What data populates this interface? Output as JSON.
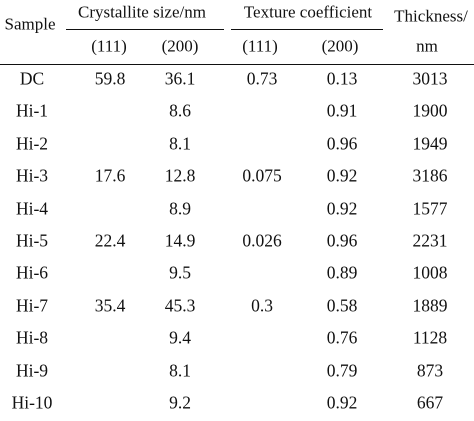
{
  "table": {
    "headers": {
      "sample": "Sample",
      "crystallite": "Crystallite size/nm",
      "texture": "Texture coefficient",
      "thickness_line1": "Thickness/",
      "thickness_line2": "nm",
      "sub_111_a": "(111)",
      "sub_200_a": "(200)",
      "sub_111_b": "(111)",
      "sub_200_b": "(200)"
    },
    "rows": [
      [
        "DC",
        "59.8",
        "36.1",
        "0.73",
        "0.13",
        "3013"
      ],
      [
        "Hi-1",
        "",
        "8.6",
        "",
        "0.91",
        "1900"
      ],
      [
        "Hi-2",
        "",
        "8.1",
        "",
        "0.96",
        "1949"
      ],
      [
        "Hi-3",
        "17.6",
        "12.8",
        "0.075",
        "0.92",
        "3186"
      ],
      [
        "Hi-4",
        "",
        "8.9",
        "",
        "0.92",
        "1577"
      ],
      [
        "Hi-5",
        "22.4",
        "14.9",
        "0.026",
        "0.96",
        "2231"
      ],
      [
        "Hi-6",
        "",
        "9.5",
        "",
        "0.89",
        "1008"
      ],
      [
        "Hi-7",
        "35.4",
        "45.3",
        "0.3",
        "0.58",
        "1889"
      ],
      [
        "Hi-8",
        "",
        "9.4",
        "",
        "0.76",
        "1128"
      ],
      [
        "Hi-9",
        "",
        "8.1",
        "",
        "0.79",
        "873"
      ],
      [
        "Hi-10",
        "",
        "9.2",
        "",
        "0.92",
        "667"
      ]
    ]
  }
}
